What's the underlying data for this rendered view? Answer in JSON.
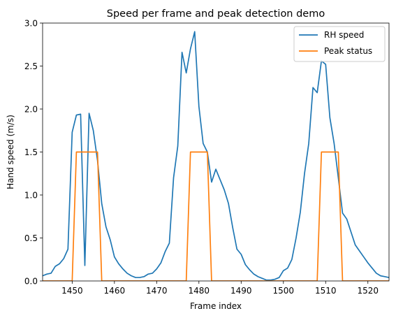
{
  "chart_data": {
    "type": "line",
    "title": "Speed per frame and peak detection demo",
    "xlabel": "Frame index",
    "ylabel": "Hand speed (m/s)",
    "xlim": [
      1443,
      1525
    ],
    "ylim": [
      0,
      3.0
    ],
    "xticks": [
      1450,
      1460,
      1470,
      1480,
      1490,
      1500,
      1510,
      1520
    ],
    "yticks": [
      "0.0",
      "0.5",
      "1.0",
      "1.5",
      "2.0",
      "2.5",
      "3.0"
    ],
    "grid": false,
    "legend_position": "top-right",
    "series": [
      {
        "name": "RH speed",
        "color": "#1f77b4",
        "x": [
          1443,
          1444,
          1445,
          1446,
          1447,
          1448,
          1449,
          1450,
          1451,
          1452,
          1453,
          1454,
          1455,
          1456,
          1457,
          1458,
          1459,
          1460,
          1461,
          1462,
          1463,
          1464,
          1465,
          1466,
          1467,
          1468,
          1469,
          1470,
          1471,
          1472,
          1473,
          1474,
          1475,
          1476,
          1477,
          1478,
          1479,
          1480,
          1481,
          1482,
          1483,
          1484,
          1485,
          1486,
          1487,
          1488,
          1489,
          1490,
          1491,
          1492,
          1493,
          1494,
          1495,
          1496,
          1497,
          1498,
          1499,
          1500,
          1501,
          1502,
          1503,
          1504,
          1505,
          1506,
          1507,
          1508,
          1509,
          1510,
          1511,
          1512,
          1513,
          1514,
          1515,
          1516,
          1517,
          1518,
          1519,
          1520,
          1521,
          1522,
          1523,
          1524,
          1525
        ],
        "values": [
          0.06,
          0.08,
          0.09,
          0.17,
          0.2,
          0.26,
          0.37,
          1.73,
          1.93,
          1.94,
          0.18,
          1.95,
          1.75,
          1.4,
          0.9,
          0.63,
          0.48,
          0.28,
          0.2,
          0.14,
          0.09,
          0.06,
          0.04,
          0.04,
          0.05,
          0.08,
          0.09,
          0.14,
          0.21,
          0.34,
          0.44,
          1.2,
          1.57,
          2.66,
          2.42,
          2.7,
          2.9,
          2.03,
          1.6,
          1.5,
          1.15,
          1.3,
          1.18,
          1.06,
          0.9,
          0.62,
          0.37,
          0.31,
          0.19,
          0.13,
          0.08,
          0.05,
          0.03,
          0.01,
          0.01,
          0.02,
          0.04,
          0.12,
          0.15,
          0.25,
          0.5,
          0.8,
          1.25,
          1.6,
          2.25,
          2.19,
          2.56,
          2.52,
          1.9,
          1.6,
          1.2,
          0.79,
          0.72,
          0.57,
          0.42,
          0.35,
          0.28,
          0.21,
          0.15,
          0.09,
          0.06,
          0.05,
          0.04
        ]
      },
      {
        "name": "Peak status",
        "color": "#ff7f0e",
        "x": [
          1443,
          1450,
          1451,
          1456,
          1457,
          1477,
          1478,
          1482,
          1483,
          1508,
          1509,
          1513,
          1514,
          1525
        ],
        "values": [
          0,
          0,
          1.5,
          1.5,
          0,
          0,
          1.5,
          1.5,
          0,
          0,
          1.5,
          1.5,
          0,
          0
        ]
      }
    ]
  }
}
